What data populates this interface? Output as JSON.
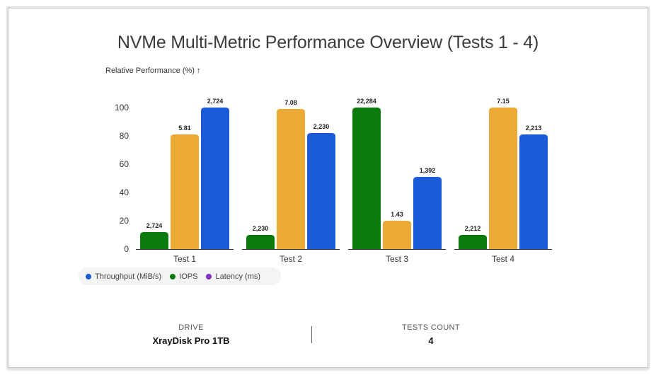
{
  "chart_data": {
    "type": "bar",
    "title": "NVMe Multi-Metric Performance Overview (Tests 1 - 4)",
    "ylabel": "Relative Performance (%) ↑",
    "xlabel": "",
    "categories": [
      "Test 1",
      "Test 2",
      "Test 3",
      "Test 4"
    ],
    "ylim": [
      0,
      100
    ],
    "yticks": [
      0,
      20,
      40,
      60,
      80,
      100
    ],
    "series": [
      {
        "key": "green",
        "color": "#0a7a0a",
        "values": [
          12,
          10,
          100,
          10
        ],
        "labels": [
          "2,724",
          "2,230",
          "22,284",
          "2,212"
        ]
      },
      {
        "key": "orange",
        "color": "#eaaa35",
        "values": [
          81,
          99,
          20,
          100
        ],
        "labels": [
          "5.81",
          "7.08",
          "1.43",
          "7.15"
        ]
      },
      {
        "key": "blue",
        "color": "#1a5ad6",
        "values": [
          100,
          82,
          51,
          81
        ],
        "labels": [
          "2,724",
          "2,230",
          "1,392",
          "2,213"
        ]
      }
    ],
    "legend": [
      {
        "name": "Throughput (MiB/s)",
        "color": "#1a5ad6"
      },
      {
        "name": "IOPS",
        "color": "#0a7a0a"
      },
      {
        "name": "Latency (ms)",
        "color": "#7b2fbe"
      }
    ],
    "legend_position": "bottom-left",
    "grid": false
  },
  "summary": {
    "drive_label": "DRIVE",
    "drive_value": "XrayDisk Pro 1TB",
    "tests_label": "TESTS COUNT",
    "tests_value": "4"
  }
}
